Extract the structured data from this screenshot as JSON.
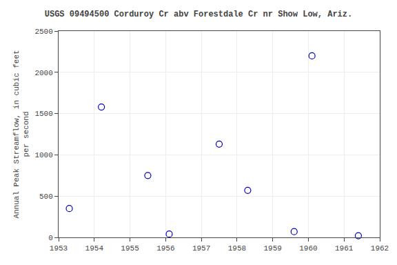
{
  "chart_data": {
    "type": "scatter",
    "title": "USGS 09494500 Corduroy Cr abv Forestdale Cr nr Show Low, Ariz.",
    "ylabel": "Annual Peak Streamflow, in cubic feet\nper second",
    "x": [
      1953.3,
      1954.2,
      1955.5,
      1956.1,
      1957.5,
      1958.3,
      1959.6,
      1960.1,
      1961.4
    ],
    "values": [
      350,
      1580,
      750,
      40,
      1130,
      570,
      70,
      2200,
      20
    ],
    "color": "#0000bb",
    "marker": "circle-open",
    "xlim": [
      1953,
      1962
    ],
    "ylim": [
      0,
      2500
    ],
    "xticks": [
      1953,
      1954,
      1955,
      1956,
      1957,
      1958,
      1959,
      1960,
      1961,
      1962
    ],
    "yticks": [
      0,
      500,
      1000,
      1500,
      2000,
      2500
    ],
    "grid": true
  }
}
